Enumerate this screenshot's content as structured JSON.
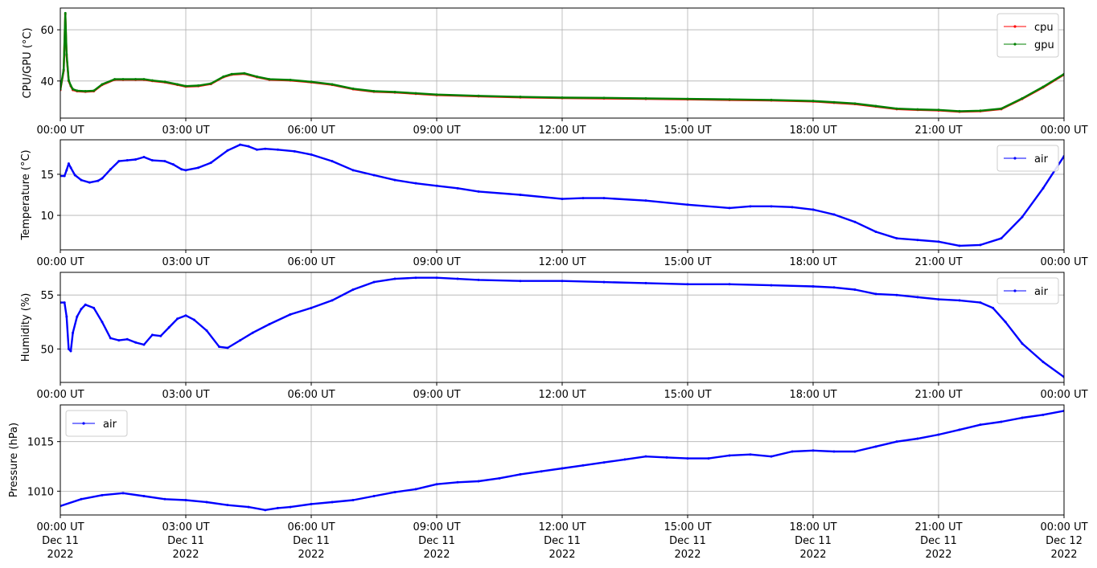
{
  "x_ticks": [
    "00:00 UT",
    "03:00 UT",
    "06:00 UT",
    "09:00 UT",
    "12:00 UT",
    "15:00 UT",
    "18:00 UT",
    "21:00 UT",
    "00:00 UT"
  ],
  "x_tick_dates": [
    [
      "Dec 11",
      "2022"
    ],
    [
      "Dec 11",
      "2022"
    ],
    [
      "Dec 11",
      "2022"
    ],
    [
      "Dec 11",
      "2022"
    ],
    [
      "Dec 11",
      "2022"
    ],
    [
      "Dec 11",
      "2022"
    ],
    [
      "Dec 11",
      "2022"
    ],
    [
      "Dec 11",
      "2022"
    ],
    [
      "Dec 12",
      "2022"
    ]
  ],
  "chart_data": [
    {
      "type": "line",
      "ylabel": "CPU/GPU (°C)",
      "ylim": [
        25.5,
        68.5
      ],
      "yticks": [
        40,
        60
      ],
      "xlim_hours": [
        0,
        24
      ],
      "grid": true,
      "legend_position": "top-right",
      "series": [
        {
          "name": "cpu",
          "color": "#ff0000",
          "x_hours": [
            0,
            0.08,
            0.12,
            0.15,
            0.2,
            0.25,
            0.3,
            0.4,
            0.6,
            0.8,
            1.0,
            1.3,
            1.5,
            1.8,
            2.0,
            2.2,
            2.5,
            2.8,
            3.0,
            3.3,
            3.6,
            3.9,
            4.1,
            4.4,
            4.7,
            5.0,
            5.5,
            6.0,
            6.5,
            7.0,
            7.5,
            8.0,
            8.5,
            9.0,
            10.0,
            11.0,
            12.0,
            13.0,
            14.0,
            15.0,
            16.0,
            17.0,
            18.0,
            18.5,
            19.0,
            19.5,
            20.0,
            20.5,
            21.0,
            21.5,
            22.0,
            22.5,
            23.0,
            23.5,
            24.0
          ],
          "y": [
            36.5,
            44,
            66,
            50,
            40,
            38,
            36.5,
            36,
            35.8,
            36,
            38.5,
            40.5,
            40.5,
            40.5,
            40.5,
            40,
            39.5,
            38.5,
            37.8,
            38,
            38.8,
            41.5,
            42.5,
            42.8,
            41.5,
            40.5,
            40.2,
            39.5,
            38.5,
            36.8,
            35.8,
            35.5,
            35,
            34.5,
            34,
            33.6,
            33.3,
            33.2,
            33,
            32.8,
            32.6,
            32.4,
            32,
            31.5,
            31,
            30,
            29,
            28.7,
            28.5,
            28,
            28.2,
            29,
            33,
            37.5,
            42.5
          ]
        },
        {
          "name": "gpu",
          "color": "#008000",
          "x_hours": [
            0,
            0.08,
            0.12,
            0.15,
            0.2,
            0.25,
            0.3,
            0.4,
            0.6,
            0.8,
            1.0,
            1.3,
            1.5,
            1.8,
            2.0,
            2.2,
            2.5,
            2.8,
            3.0,
            3.3,
            3.6,
            3.9,
            4.1,
            4.4,
            4.7,
            5.0,
            5.5,
            6.0,
            6.5,
            7.0,
            7.5,
            8.0,
            8.5,
            9.0,
            10.0,
            11.0,
            12.0,
            13.0,
            14.0,
            15.0,
            16.0,
            17.0,
            18.0,
            18.5,
            19.0,
            19.5,
            20.0,
            20.5,
            21.0,
            21.5,
            22.0,
            22.5,
            23.0,
            23.5,
            24.0
          ],
          "y": [
            36.8,
            44.5,
            66.5,
            50.5,
            40.3,
            38.2,
            36.8,
            36.2,
            36,
            36.2,
            38.7,
            40.7,
            40.7,
            40.7,
            40.7,
            40.2,
            39.7,
            38.7,
            38,
            38.2,
            39,
            41.7,
            42.7,
            43,
            41.7,
            40.7,
            40.4,
            39.7,
            38.7,
            37,
            36,
            35.7,
            35.2,
            34.7,
            34.2,
            33.8,
            33.5,
            33.4,
            33.2,
            33,
            32.8,
            32.6,
            32.2,
            31.7,
            31.2,
            30.2,
            29.2,
            28.9,
            28.7,
            28.2,
            28.4,
            29.2,
            33.2,
            37.7,
            42.7
          ]
        }
      ]
    },
    {
      "type": "line",
      "ylabel": "Temperature (°C)",
      "ylim": [
        5.8,
        19.2
      ],
      "yticks": [
        10,
        15
      ],
      "xlim_hours": [
        0,
        24
      ],
      "grid": true,
      "legend_position": "top-right",
      "series": [
        {
          "name": "air",
          "color": "#0000ff",
          "x_hours": [
            0,
            0.1,
            0.15,
            0.2,
            0.25,
            0.35,
            0.5,
            0.7,
            0.9,
            1.0,
            1.2,
            1.4,
            1.6,
            1.8,
            2.0,
            2.2,
            2.5,
            2.7,
            2.9,
            3.0,
            3.3,
            3.6,
            4.0,
            4.3,
            4.5,
            4.7,
            4.9,
            5.2,
            5.6,
            6.0,
            6.5,
            7.0,
            7.5,
            8.0,
            8.5,
            9.0,
            9.5,
            10.0,
            11.0,
            12.0,
            12.5,
            13.0,
            14.0,
            15.0,
            16.0,
            16.5,
            17.0,
            17.5,
            18.0,
            18.5,
            19.0,
            19.5,
            20.0,
            20.5,
            21.0,
            21.5,
            22.0,
            22.5,
            23.0,
            23.5,
            24.0
          ],
          "y": [
            14.8,
            14.8,
            15.5,
            16.3,
            15.8,
            14.9,
            14.3,
            14.0,
            14.2,
            14.5,
            15.6,
            16.6,
            16.7,
            16.8,
            17.1,
            16.7,
            16.6,
            16.2,
            15.6,
            15.5,
            15.8,
            16.4,
            17.9,
            18.6,
            18.4,
            18.0,
            18.1,
            18.0,
            17.8,
            17.4,
            16.6,
            15.5,
            14.9,
            14.3,
            13.9,
            13.6,
            13.3,
            12.9,
            12.5,
            12.0,
            12.1,
            12.1,
            11.8,
            11.3,
            10.9,
            11.1,
            11.1,
            11.0,
            10.7,
            10.1,
            9.2,
            8.0,
            7.2,
            7.0,
            6.8,
            6.3,
            6.4,
            7.2,
            9.8,
            13.3,
            17.2
          ]
        }
      ]
    },
    {
      "type": "line",
      "ylabel": "Humidity (%)",
      "ylim": [
        46.9,
        57.1
      ],
      "yticks": [
        50,
        55
      ],
      "xlim_hours": [
        0,
        24
      ],
      "grid": true,
      "legend_position": "top-right",
      "series": [
        {
          "name": "air",
          "color": "#0000ff",
          "x_hours": [
            0,
            0.1,
            0.15,
            0.2,
            0.25,
            0.3,
            0.4,
            0.5,
            0.6,
            0.8,
            1.0,
            1.2,
            1.4,
            1.6,
            1.8,
            2.0,
            2.2,
            2.4,
            2.6,
            2.8,
            3.0,
            3.2,
            3.5,
            3.8,
            4.0,
            4.3,
            4.6,
            5.0,
            5.5,
            6.0,
            6.5,
            7.0,
            7.5,
            8.0,
            8.5,
            9.0,
            9.5,
            10.0,
            11.0,
            12.0,
            13.0,
            14.0,
            15.0,
            16.0,
            17.0,
            18.0,
            18.5,
            19.0,
            19.5,
            20.0,
            20.5,
            21.0,
            21.5,
            22.0,
            22.3,
            22.6,
            23.0,
            23.5,
            24.0
          ],
          "y": [
            54.3,
            54.3,
            53,
            50,
            49.8,
            51.5,
            53,
            53.7,
            54.1,
            53.8,
            52.5,
            51.0,
            50.8,
            50.9,
            50.6,
            50.4,
            51.3,
            51.2,
            52.0,
            52.8,
            53.1,
            52.7,
            51.7,
            50.2,
            50.1,
            50.8,
            51.5,
            52.3,
            53.2,
            53.8,
            54.5,
            55.5,
            56.2,
            56.5,
            56.6,
            56.6,
            56.5,
            56.4,
            56.3,
            56.3,
            56.2,
            56.1,
            56.0,
            56.0,
            55.9,
            55.8,
            55.7,
            55.5,
            55.1,
            55.0,
            54.8,
            54.6,
            54.5,
            54.3,
            53.8,
            52.5,
            50.5,
            48.8,
            47.4
          ]
        }
      ]
    },
    {
      "type": "line",
      "ylabel": "Pressure (hPa)",
      "ylim": [
        1007.6,
        1018.7
      ],
      "yticks": [
        1010,
        1015
      ],
      "xlim_hours": [
        0,
        24
      ],
      "grid": true,
      "legend_position": "top-left",
      "series": [
        {
          "name": "air",
          "color": "#0000ff",
          "x_hours": [
            0,
            0.5,
            1.0,
            1.5,
            2.0,
            2.5,
            3.0,
            3.5,
            4.0,
            4.5,
            4.9,
            5.2,
            5.5,
            6.0,
            6.5,
            7.0,
            7.5,
            8.0,
            8.5,
            9.0,
            9.5,
            10.0,
            10.5,
            11.0,
            11.5,
            12.0,
            12.5,
            13.0,
            13.5,
            14.0,
            14.5,
            15.0,
            15.5,
            16.0,
            16.5,
            17.0,
            17.5,
            18.0,
            18.5,
            19.0,
            19.5,
            20.0,
            20.5,
            21.0,
            21.5,
            22.0,
            22.5,
            23.0,
            23.5,
            24.0
          ],
          "y": [
            1008.5,
            1009.2,
            1009.6,
            1009.8,
            1009.5,
            1009.2,
            1009.1,
            1008.9,
            1008.6,
            1008.4,
            1008.1,
            1008.3,
            1008.4,
            1008.7,
            1008.9,
            1009.1,
            1009.5,
            1009.9,
            1010.2,
            1010.7,
            1010.9,
            1011.0,
            1011.3,
            1011.7,
            1012.0,
            1012.3,
            1012.6,
            1012.9,
            1013.2,
            1013.5,
            1013.4,
            1013.3,
            1013.3,
            1013.6,
            1013.7,
            1013.5,
            1014.0,
            1014.1,
            1014.0,
            1014.0,
            1014.5,
            1015.0,
            1015.3,
            1015.7,
            1016.2,
            1016.7,
            1017.0,
            1017.4,
            1017.7,
            1018.1
          ]
        }
      ]
    }
  ]
}
